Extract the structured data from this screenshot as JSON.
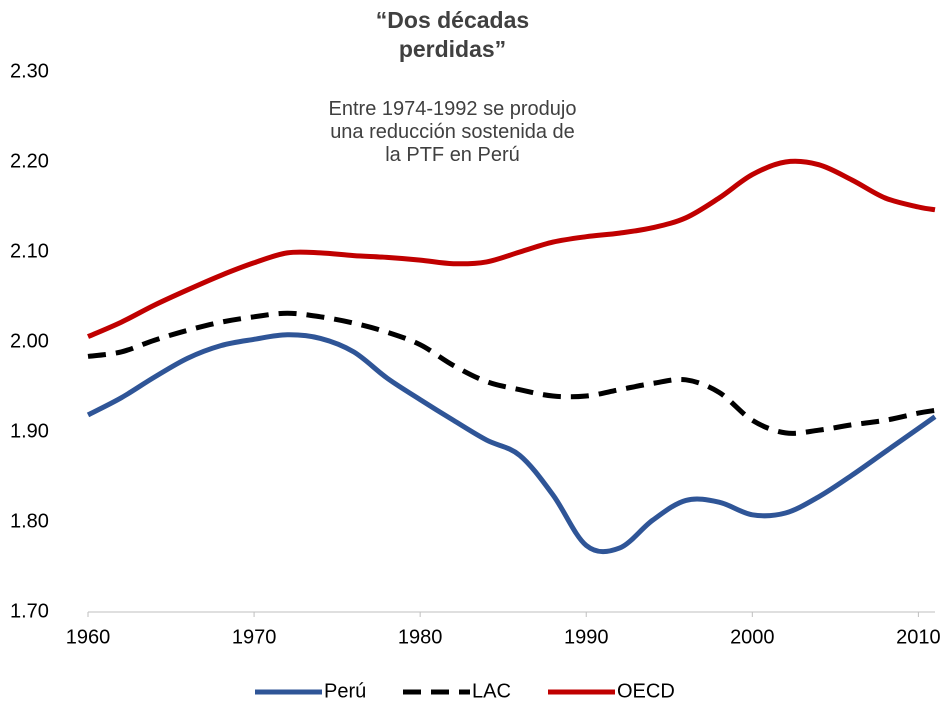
{
  "chart_data": {
    "type": "line",
    "title": "“Dos décadas perdidas”",
    "annotation": "Entre 1974-1992 se produjo una reducción sostenida de la PTF en Perú",
    "x": [
      1960,
      1962,
      1964,
      1966,
      1968,
      1970,
      1972,
      1974,
      1976,
      1978,
      1980,
      1982,
      1984,
      1986,
      1988,
      1990,
      1992,
      1994,
      1996,
      1998,
      2000,
      2002,
      2004,
      2006,
      2008,
      2010,
      2011
    ],
    "series": [
      {
        "name": "Perú",
        "color": "#2f5597",
        "dash": false,
        "values": [
          1.919,
          1.938,
          1.961,
          1.982,
          1.996,
          2.003,
          2.008,
          2.004,
          1.989,
          1.96,
          1.936,
          1.913,
          1.891,
          1.874,
          1.83,
          1.774,
          1.771,
          1.802,
          1.824,
          1.822,
          1.808,
          1.81,
          1.828,
          1.852,
          1.878,
          1.904,
          1.917
        ]
      },
      {
        "name": "LAC",
        "color": "#000000",
        "dash": true,
        "values": [
          1.984,
          1.989,
          2.002,
          2.013,
          2.022,
          2.028,
          2.032,
          2.028,
          2.021,
          2.011,
          1.997,
          1.974,
          1.956,
          1.947,
          1.94,
          1.94,
          1.947,
          1.954,
          1.958,
          1.944,
          1.913,
          1.899,
          1.902,
          1.908,
          1.913,
          1.921,
          1.924
        ]
      },
      {
        "name": "OECD",
        "color": "#c00000",
        "dash": false,
        "values": [
          2.006,
          2.022,
          2.041,
          2.058,
          2.074,
          2.088,
          2.099,
          2.099,
          2.096,
          2.094,
          2.091,
          2.087,
          2.089,
          2.1,
          2.111,
          2.117,
          2.121,
          2.127,
          2.138,
          2.16,
          2.186,
          2.2,
          2.197,
          2.18,
          2.16,
          2.15,
          2.147
        ]
      }
    ],
    "xlim": [
      1960,
      2011
    ],
    "xticks": [
      1960,
      1970,
      1980,
      1990,
      2000,
      2010
    ],
    "ylim": [
      1.7,
      2.3
    ],
    "yticks": [
      {
        "value": 1.7,
        "label": "1.70"
      },
      {
        "value": 1.8,
        "label": "1.80"
      },
      {
        "value": 1.9,
        "label": "1.90"
      },
      {
        "value": 2.0,
        "label": "2.00"
      },
      {
        "value": 2.1,
        "label": "2.10"
      },
      {
        "value": 2.2,
        "label": "2.20"
      },
      {
        "value": 2.3,
        "label": "2.30"
      }
    ],
    "grid": false,
    "legend": "bottom"
  }
}
